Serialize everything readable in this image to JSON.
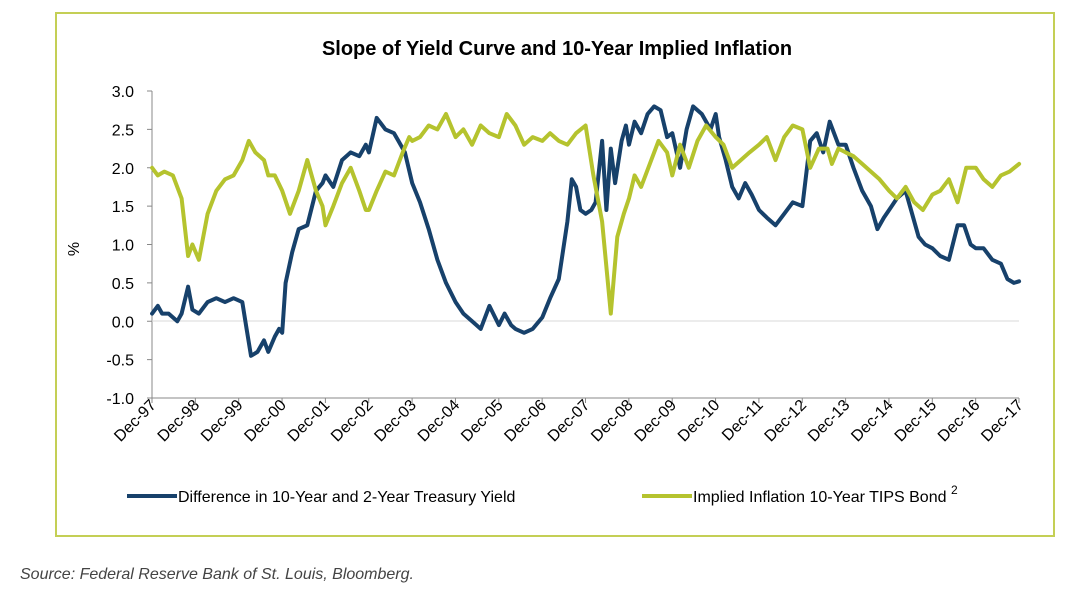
{
  "source_note": "Source: Federal Reserve Bank of St. Louis, Bloomberg.",
  "chart_data": {
    "type": "line",
    "title": "Slope of Yield Curve and 10-Year Implied Inflation",
    "xlabel": "",
    "ylabel": "%",
    "ylim": [
      -1.0,
      3.0
    ],
    "yticks": [
      "3.0",
      "2.5",
      "2.0",
      "1.5",
      "1.0",
      "0.5",
      "0.0",
      "-0.5",
      "-1.0"
    ],
    "ytick_values": [
      3.0,
      2.5,
      2.0,
      1.5,
      1.0,
      0.5,
      0.0,
      -0.5,
      -1.0
    ],
    "xlim": [
      1997.917,
      2017.917
    ],
    "xticks": [
      "Dec-97",
      "Dec-98",
      "Dec-99",
      "Dec-00",
      "Dec-01",
      "Dec-02",
      "Dec-03",
      "Dec-04",
      "Dec-05",
      "Dec-06",
      "Dec-07",
      "Dec-08",
      "Dec-09",
      "Dec-10",
      "Dec-11",
      "Dec-12",
      "Dec-13",
      "Dec-14",
      "Dec-15",
      "Dec-16",
      "Dec-17"
    ],
    "legend_position": "bottom",
    "grid": false,
    "series": [
      {
        "name": "Difference in 10-Year and 2-Year Treasury Yield",
        "color": "#17416b",
        "x": [
          1997.92,
          1998.05,
          1998.15,
          1998.3,
          1998.5,
          1998.6,
          1998.75,
          1998.85,
          1999.0,
          1999.2,
          1999.4,
          1999.6,
          1999.8,
          2000.0,
          2000.1,
          2000.2,
          2000.35,
          2000.5,
          2000.6,
          2000.75,
          2000.85,
          2000.92,
          2001.0,
          2001.15,
          2001.3,
          2001.5,
          2001.7,
          2001.85,
          2001.92,
          2002.1,
          2002.3,
          2002.5,
          2002.7,
          2002.85,
          2002.92,
          2003.1,
          2003.3,
          2003.5,
          2003.6,
          2003.75,
          2003.92,
          2004.1,
          2004.3,
          2004.5,
          2004.7,
          2004.92,
          2005.1,
          2005.3,
          2005.5,
          2005.7,
          2005.92,
          2006.05,
          2006.2,
          2006.3,
          2006.5,
          2006.7,
          2006.92,
          2007.1,
          2007.3,
          2007.5,
          2007.6,
          2007.7,
          2007.8,
          2007.92,
          2008.05,
          2008.15,
          2008.3,
          2008.4,
          2008.5,
          2008.6,
          2008.75,
          2008.85,
          2008.92,
          2009.05,
          2009.2,
          2009.35,
          2009.5,
          2009.65,
          2009.8,
          2009.92,
          2010.1,
          2010.25,
          2010.4,
          2010.6,
          2010.8,
          2010.92,
          2011.0,
          2011.15,
          2011.3,
          2011.45,
          2011.6,
          2011.75,
          2011.92,
          2012.1,
          2012.3,
          2012.5,
          2012.7,
          2012.92,
          2013.1,
          2013.25,
          2013.4,
          2013.55,
          2013.75,
          2013.92,
          2014.1,
          2014.3,
          2014.5,
          2014.65,
          2014.8,
          2014.92,
          2015.1,
          2015.3,
          2015.45,
          2015.6,
          2015.75,
          2015.92,
          2016.1,
          2016.3,
          2016.5,
          2016.65,
          2016.8,
          2016.92,
          2017.1,
          2017.3,
          2017.5,
          2017.65,
          2017.8,
          2017.92
        ],
        "values": [
          0.1,
          0.2,
          0.1,
          0.1,
          0.0,
          0.1,
          0.45,
          0.15,
          0.1,
          0.25,
          0.3,
          0.25,
          0.3,
          0.25,
          -0.1,
          -0.45,
          -0.4,
          -0.25,
          -0.4,
          -0.2,
          -0.1,
          -0.15,
          0.5,
          0.9,
          1.2,
          1.25,
          1.7,
          1.8,
          1.9,
          1.75,
          2.1,
          2.2,
          2.15,
          2.3,
          2.2,
          2.65,
          2.5,
          2.45,
          2.35,
          2.2,
          1.8,
          1.55,
          1.2,
          0.8,
          0.5,
          0.25,
          0.1,
          0.0,
          -0.1,
          0.2,
          -0.05,
          0.1,
          -0.05,
          -0.1,
          -0.15,
          -0.1,
          0.05,
          0.3,
          0.55,
          1.3,
          1.85,
          1.75,
          1.45,
          1.4,
          1.45,
          1.55,
          2.35,
          1.45,
          2.25,
          1.8,
          2.35,
          2.55,
          2.3,
          2.6,
          2.45,
          2.7,
          2.8,
          2.75,
          2.4,
          2.45,
          2.0,
          2.5,
          2.8,
          2.7,
          2.5,
          2.7,
          2.4,
          2.1,
          1.75,
          1.6,
          1.8,
          1.65,
          1.45,
          1.35,
          1.25,
          1.4,
          1.55,
          1.5,
          2.35,
          2.45,
          2.2,
          2.6,
          2.3,
          2.3,
          2.0,
          1.7,
          1.5,
          1.2,
          1.35,
          1.45,
          1.6,
          1.7,
          1.4,
          1.1,
          1.0,
          0.95,
          0.85,
          0.8,
          1.25,
          1.25,
          1.0,
          0.95,
          0.95,
          0.8,
          0.75,
          0.55,
          0.5,
          0.52
        ]
      },
      {
        "name": "Implied Inflation 10-Year TIPS Bond",
        "name_superscript": "2",
        "color": "#b5c32e",
        "x": [
          1997.92,
          1998.05,
          1998.2,
          1998.4,
          1998.6,
          1998.75,
          1998.85,
          1999.0,
          1999.2,
          1999.4,
          1999.6,
          1999.8,
          2000.0,
          2000.15,
          2000.3,
          2000.5,
          2000.6,
          2000.75,
          2000.92,
          2001.1,
          2001.3,
          2001.5,
          2001.7,
          2001.85,
          2001.92,
          2002.1,
          2002.3,
          2002.5,
          2002.7,
          2002.85,
          2002.92,
          2003.1,
          2003.3,
          2003.5,
          2003.7,
          2003.85,
          2003.92,
          2004.1,
          2004.3,
          2004.5,
          2004.7,
          2004.92,
          2005.1,
          2005.3,
          2005.5,
          2005.7,
          2005.92,
          2006.1,
          2006.3,
          2006.5,
          2006.7,
          2006.92,
          2007.1,
          2007.3,
          2007.5,
          2007.7,
          2007.92,
          2008.1,
          2008.3,
          2008.5,
          2008.65,
          2008.8,
          2008.92,
          2009.05,
          2009.2,
          2009.4,
          2009.6,
          2009.8,
          2009.92,
          2010.1,
          2010.3,
          2010.5,
          2010.7,
          2010.92,
          2011.1,
          2011.3,
          2011.5,
          2011.7,
          2011.92,
          2012.1,
          2012.3,
          2012.5,
          2012.7,
          2012.92,
          2013.1,
          2013.3,
          2013.5,
          2013.6,
          2013.75,
          2013.92,
          2014.1,
          2014.3,
          2014.5,
          2014.7,
          2014.92,
          2015.1,
          2015.3,
          2015.5,
          2015.7,
          2015.92,
          2016.1,
          2016.3,
          2016.5,
          2016.7,
          2016.92,
          2017.1,
          2017.3,
          2017.5,
          2017.7,
          2017.92
        ],
        "values": [
          2.0,
          1.9,
          1.95,
          1.9,
          1.6,
          0.85,
          1.0,
          0.8,
          1.4,
          1.7,
          1.85,
          1.9,
          2.1,
          2.35,
          2.2,
          2.1,
          1.9,
          1.9,
          1.7,
          1.4,
          1.7,
          2.1,
          1.7,
          1.5,
          1.25,
          1.5,
          1.8,
          2.0,
          1.7,
          1.45,
          1.45,
          1.7,
          1.95,
          1.9,
          2.2,
          2.4,
          2.35,
          2.4,
          2.55,
          2.5,
          2.7,
          2.4,
          2.5,
          2.3,
          2.55,
          2.45,
          2.4,
          2.7,
          2.55,
          2.3,
          2.4,
          2.35,
          2.45,
          2.35,
          2.3,
          2.45,
          2.55,
          1.9,
          1.3,
          0.1,
          1.1,
          1.4,
          1.6,
          1.9,
          1.75,
          2.05,
          2.35,
          2.2,
          1.9,
          2.3,
          2.0,
          2.35,
          2.55,
          2.4,
          2.3,
          2.0,
          2.1,
          2.2,
          2.3,
          2.4,
          2.1,
          2.4,
          2.55,
          2.5,
          2.0,
          2.25,
          2.25,
          2.05,
          2.25,
          2.2,
          2.15,
          2.05,
          1.95,
          1.85,
          1.7,
          1.6,
          1.75,
          1.55,
          1.45,
          1.65,
          1.7,
          1.85,
          1.55,
          2.0,
          2.0,
          1.85,
          1.75,
          1.9,
          1.95,
          2.05
        ]
      }
    ]
  }
}
